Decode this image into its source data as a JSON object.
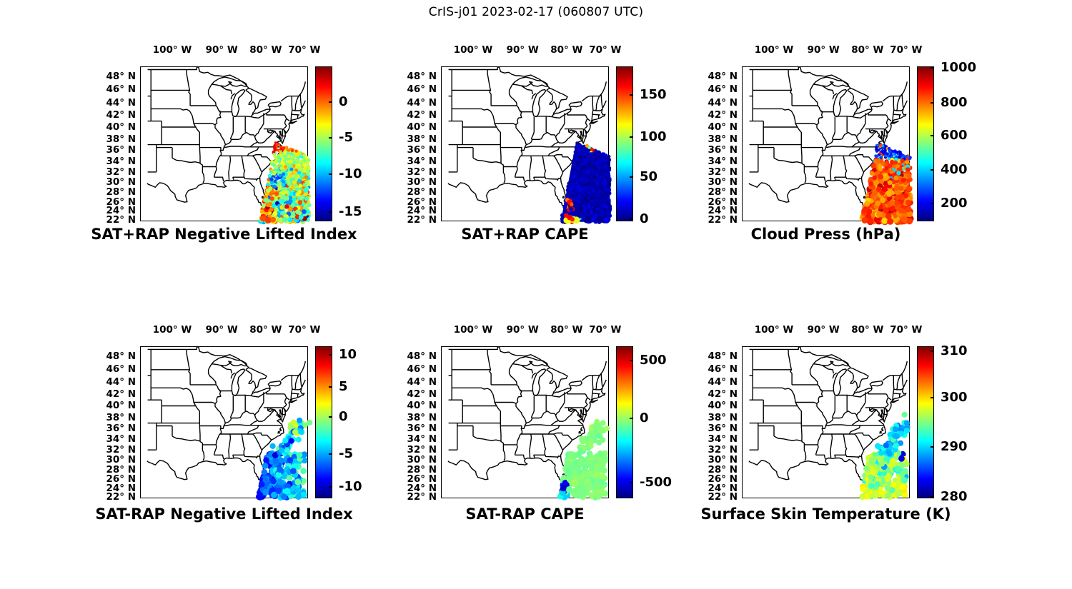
{
  "title": "CrIS-j01 2023-02-17 (060807 UTC)",
  "colors": {
    "background": "#ffffff",
    "text": "#000000",
    "map_line": "#000000",
    "jet_stops_top_to_bottom": [
      "#800000",
      "#ff0000",
      "#ffff00",
      "#00ffff",
      "#0000ff",
      "#000080"
    ]
  },
  "chart_data": {
    "type": "scatter",
    "subtype": "geographic-swath-grid",
    "grid": {
      "rows": 2,
      "cols": 3
    },
    "figure_title": "CrIS-j01 2023-02-17 (060807 UTC)",
    "colormap": "jet",
    "lon_ticks": [
      "100° W",
      "90° W",
      "80° W",
      "70° W"
    ],
    "lon_tick_values": [
      -100,
      -90,
      -80,
      -70
    ],
    "lat_ticks": [
      "48° N",
      "46° N",
      "44° N",
      "42° N",
      "40° N",
      "38° N",
      "36° N",
      "34° N",
      "32° N",
      "30° N",
      "28° N",
      "26° N",
      "24° N",
      "22° N"
    ],
    "lat_tick_values": [
      48,
      46,
      44,
      42,
      40,
      38,
      36,
      34,
      32,
      30,
      28,
      26,
      24,
      22
    ],
    "map_extent": {
      "lon": [
        -105.5,
        -68.8
      ],
      "lat": [
        21.5,
        49.5
      ]
    },
    "swath_polygon": [
      [
        -77.7,
        37.4
      ],
      [
        -68.7,
        34.9
      ],
      [
        -68.7,
        21.5
      ],
      [
        -81.4,
        21.5
      ]
    ],
    "cluster_band": {
      "lat": [
        21.8,
        31.4
      ],
      "lon_left_at_s": -81.7,
      "lon_left_slope": 0.22,
      "lon_right": -69.9
    },
    "cluster_arm": {
      "from": [
        -76.2,
        31.6
      ],
      "to": [
        -70.7,
        36.7
      ],
      "jitter": [
        1.0,
        0.75
      ]
    },
    "panels": [
      {
        "id": "sat_plus_rap_nli",
        "caption": "SAT+RAP Negative Lifted Index",
        "colorbar": {
          "labels": [
            "0",
            "-5",
            "-10",
            "-15"
          ],
          "fracs": [
            0.229,
            0.46,
            0.697,
            0.939
          ],
          "value_range_estimate": [
            -16.3,
            4.9
          ]
        },
        "summary": "Dense satellite swath off the US southeast coast; orange-red near 36-38N, yellow-green mid-band, cyan/blue patches 28-32N, mixed orange/cyan/blue blobs south of 27N.",
        "scatter": {
          "kind": "swath",
          "seed": 7,
          "count": 1050,
          "r_base": 2.0,
          "r_split": 37.4,
          "r_jump": 0,
          "r_grow": 0.1,
          "fill": null,
          "rules": [
            {
              "lat": [
                35.8,
                38.2
              ],
              "frac": 0.78,
              "sd": 0.05,
              "w": 1
            },
            {
              "lat": [
                35.5,
                38.2
              ],
              "lon": [
                -78.2,
                -76.2
              ],
              "frac": 0.85,
              "sd": 0.04,
              "w": 1.5
            },
            {
              "lat": [
                33.2,
                35.8
              ],
              "frac": 0.55,
              "sd": 0.06,
              "w": 1
            },
            {
              "lat": [
                31.0,
                33.2
              ],
              "frac": 0.55,
              "sd": 0.12,
              "w": 1
            },
            {
              "lat": [
                28.8,
                31.6
              ],
              "lon": [
                -78.8,
                -75.2
              ],
              "frac": 0.26,
              "sd": 0.07,
              "w": 2.2
            },
            {
              "lat": [
                26.5,
                31.0
              ],
              "frac": 0.57,
              "sd": 0.14,
              "w": 1
            },
            {
              "lat": [
                26.0,
                29.2
              ],
              "lon": [
                -80.6,
                -78.2
              ],
              "frac": 0.74,
              "sd": 0.07,
              "w": 2
            },
            {
              "lat": [
                21.5,
                26.5
              ],
              "frac": 0.5,
              "sd": 0.18,
              "w": 1
            },
            {
              "lat": [
                22.6,
                26.2
              ],
              "lon": [
                -81.4,
                -78.4
              ],
              "frac": 0.77,
              "sd": 0.1,
              "w": 1.6
            },
            {
              "lat": [
                21.5,
                22.8
              ],
              "frac": 0.65,
              "sd": 0.15,
              "w": 1.3
            }
          ],
          "spots": [
            [
              -80.6,
              22.3,
              0.8,
              4.5
            ],
            [
              -79.4,
              21.9,
              0.82,
              4.5
            ],
            [
              -78.2,
              22.0,
              0.78,
              4.0
            ],
            [
              -76.2,
              21.9,
              0.55,
              4.0
            ],
            [
              -75.2,
              22.1,
              0.45,
              3.6
            ]
          ]
        }
      },
      {
        "id": "sat_plus_rap_cape",
        "caption": "SAT+RAP CAPE",
        "colorbar": {
          "labels": [
            "150",
            "100",
            "50",
            "0"
          ],
          "fracs": [
            0.184,
            0.456,
            0.714,
            0.986
          ],
          "value_range_estimate": [
            -3,
            184
          ]
        },
        "summary": "Swath nearly uniform dark blue (CAPE ~0); small warm specks near 36-37N, red/yellow cluster 23-27N near 79W, two yellow circles at the swath bottom edge.",
        "scatter": {
          "kind": "swath",
          "seed": 13,
          "count": 900,
          "r_base": 2.0,
          "r_split": 37.4,
          "r_jump": 0,
          "r_grow": 0.085,
          "fill": 0.045,
          "rules": [
            {
              "frac": 0.05,
              "sd": 0.03,
              "w": 1
            },
            {
              "lat": [
                35.6,
                37.2
              ],
              "lon": [
                -75.6,
                -72.2
              ],
              "frac": 0.5,
              "sd": 0.25,
              "w": 0.35
            },
            {
              "lat": [
                24.0,
                26.6
              ],
              "lon": [
                -80.0,
                -78.4
              ],
              "frac": 0.83,
              "sd": 0.13,
              "w": 2.5
            },
            {
              "lat": [
                26.6,
                27.8
              ],
              "lon": [
                -80.3,
                -79.2
              ],
              "frac": 0.55,
              "sd": 0.15,
              "w": 2.5
            },
            {
              "lat": [
                21.5,
                23.3
              ],
              "lon": [
                -80.6,
                -76.2
              ],
              "frac": 0.6,
              "sd": 0.22,
              "w": 1
            }
          ],
          "spots": [
            [
              -79.9,
              21.9,
              0.62,
              5.0
            ],
            [
              -77.6,
              21.9,
              0.6,
              5.0
            ],
            [
              -79.3,
              22.5,
              0.88,
              3.6
            ],
            [
              -78.6,
              22.1,
              0.85,
              3.2
            ],
            [
              -80.1,
              23.0,
              0.87,
              3.2
            ],
            [
              -74.9,
              36.8,
              0.72,
              2.6
            ],
            [
              -74.3,
              36.5,
              0.5,
              2.4
            ],
            [
              -73.6,
              36.2,
              0.85,
              2.2
            ]
          ]
        }
      },
      {
        "id": "cloud_press",
        "caption": "Cloud Press (hPa)",
        "colorbar": {
          "labels": [
            "1000",
            "800",
            "600",
            "400",
            "200"
          ],
          "fracs": [
            0.01,
            0.235,
            0.447,
            0.668,
            0.885
          ],
          "value_range_estimate": [
            90,
            1005
          ]
        },
        "summary": "Blue/dark-blue small dots north of ~34.5N (high cloud), large orange/red dots with white gaps to the south, occasional cyan dots; big orange circles along the bottom edge.",
        "scatter": {
          "kind": "swath",
          "seed": 21,
          "count": 900,
          "r_base": 2.1,
          "r_split": 34.4,
          "r_jump": 0.8,
          "r_grow": 0.13,
          "fill": null,
          "rules": [
            {
              "lat": [
                34.4,
                38.2
              ],
              "frac": 0.16,
              "sd": 0.08,
              "w": 1
            },
            {
              "lat": [
                34.4,
                38.2
              ],
              "frac": 0.8,
              "sd": 0.05,
              "w": 0.15
            },
            {
              "lat": [
                29.8,
                34.4
              ],
              "frac": 0.79,
              "sd": 0.06,
              "w": 1,
              "skip": 0.06
            },
            {
              "lat": [
                29.8,
                34.4
              ],
              "frac": 0.36,
              "sd": 0.06,
              "w": 0.09
            },
            {
              "lat": [
                21.5,
                29.8
              ],
              "frac": 0.8,
              "sd": 0.06,
              "w": 1,
              "skip": 0.17
            },
            {
              "lat": [
                26.3,
                26.9
              ],
              "lon": [
                -78.9,
                -78.3
              ],
              "frac": 0.35,
              "sd": 0.04,
              "w": 6
            }
          ],
          "spots": []
        }
      },
      {
        "id": "sat_minus_rap_nli",
        "caption": "SAT-RAP Negative Lifted Index",
        "colorbar": {
          "labels": [
            "10",
            "5",
            "0",
            "-5",
            "-10"
          ],
          "fracs": [
            0.056,
            0.266,
            0.463,
            0.71,
            0.925
          ],
          "value_range_estimate": [
            -12.5,
            11.3
          ]
        },
        "summary": "Sparse cluster of blue/cyan dots 22-31N west of 70W plus a northeast arm to ~37N with a few yellow-olive dots near its top.",
        "scatter": {
          "kind": "clusters",
          "seed": 41,
          "band_count": 230,
          "arm_count": 56,
          "r_band": 4.4,
          "r_arm": 4.1,
          "rules": [
            {
              "frac": 0.2,
              "sd": 0.08,
              "w": 1,
              "grad": [
                -80,
                0.018
              ]
            },
            {
              "lat": [
                31.4,
                37.4
              ],
              "frac": 0.38,
              "sd": 0.1,
              "w": 1
            },
            {
              "lat": [
                34.8,
                37.4
              ],
              "lon": [
                -74.6,
                -70.4
              ],
              "frac": 0.55,
              "sd": 0.06,
              "w": 2.5
            },
            {
              "lat": [
                21.8,
                31.0
              ],
              "lon": [
                -81.7,
                -77.5
              ],
              "frac": 0.14,
              "sd": 0.05,
              "w": 1.2
            }
          ],
          "spots": []
        }
      },
      {
        "id": "sat_minus_rap_cape",
        "caption": "SAT-RAP CAPE",
        "colorbar": {
          "labels": [
            "500",
            "0",
            "-500"
          ],
          "fracs": [
            0.093,
            0.472,
            0.897
          ],
          "value_range_estimate": [
            -628,
            616
          ]
        },
        "summary": "Same cluster shape, nearly all light green (difference ~0); small dark-blue patch near 24N 80.5W with cyan dots just south of it.",
        "scatter": {
          "kind": "clusters",
          "seed": 51,
          "band_count": 230,
          "arm_count": 56,
          "r_band": 4.4,
          "r_arm": 4.1,
          "rules": [
            {
              "frac": 0.5,
              "sd": 0.015,
              "w": 1
            },
            {
              "lat": [
                23.2,
                25.2
              ],
              "lon": [
                -82.3,
                -79.8
              ],
              "frac": 0.1,
              "sd": 0.05,
              "w": 8
            },
            {
              "lat": [
                21.9,
                23.4
              ],
              "lon": [
                -82.4,
                -79.4
              ],
              "frac": 0.3,
              "sd": 0.06,
              "w": 3
            }
          ],
          "spots": []
        }
      },
      {
        "id": "surface_skin_temperature",
        "caption": "Surface Skin Temperature (K)",
        "colorbar": {
          "labels": [
            "310",
            "300",
            "290",
            "280"
          ],
          "fracs": [
            0.033,
            0.336,
            0.664,
            0.991
          ],
          "value_range_estimate": [
            279.5,
            311
          ]
        },
        "summary": "Cluster yellow-green (~295-298 K) south of 31N, cyan/light-blue arm dots to the northeast (~289-291 K), two dark blue dots (~281 K) near 30-31.5N 71.5W.",
        "scatter": {
          "kind": "clusters",
          "seed": 61,
          "band_count": 230,
          "arm_count": 56,
          "r_band": 4.4,
          "r_arm": 4.1,
          "rules": [
            {
              "lat": [
                21.8,
                31.4
              ],
              "frac": 0.55,
              "sd": 0.045,
              "w": 1
            },
            {
              "lat": [
                21.8,
                24.4
              ],
              "frac": 0.6,
              "sd": 0.04,
              "w": 1.6
            },
            {
              "lat": [
                24.4,
                31.4
              ],
              "frac": 0.37,
              "sd": 0.04,
              "w": 0.22
            },
            {
              "lat": [
                30.3,
                31.6
              ],
              "frac": 0.42,
              "sd": 0.05,
              "w": 0.8
            },
            {
              "lat": [
                31.4,
                37.4
              ],
              "frac": 0.33,
              "sd": 0.05,
              "w": 5
            },
            {
              "lat": [
                30.0,
                31.8
              ],
              "lon": [
                -71.9,
                -70.7
              ],
              "frac": 0.07,
              "sd": 0.03,
              "w": 12
            }
          ],
          "spots": []
        }
      }
    ]
  }
}
